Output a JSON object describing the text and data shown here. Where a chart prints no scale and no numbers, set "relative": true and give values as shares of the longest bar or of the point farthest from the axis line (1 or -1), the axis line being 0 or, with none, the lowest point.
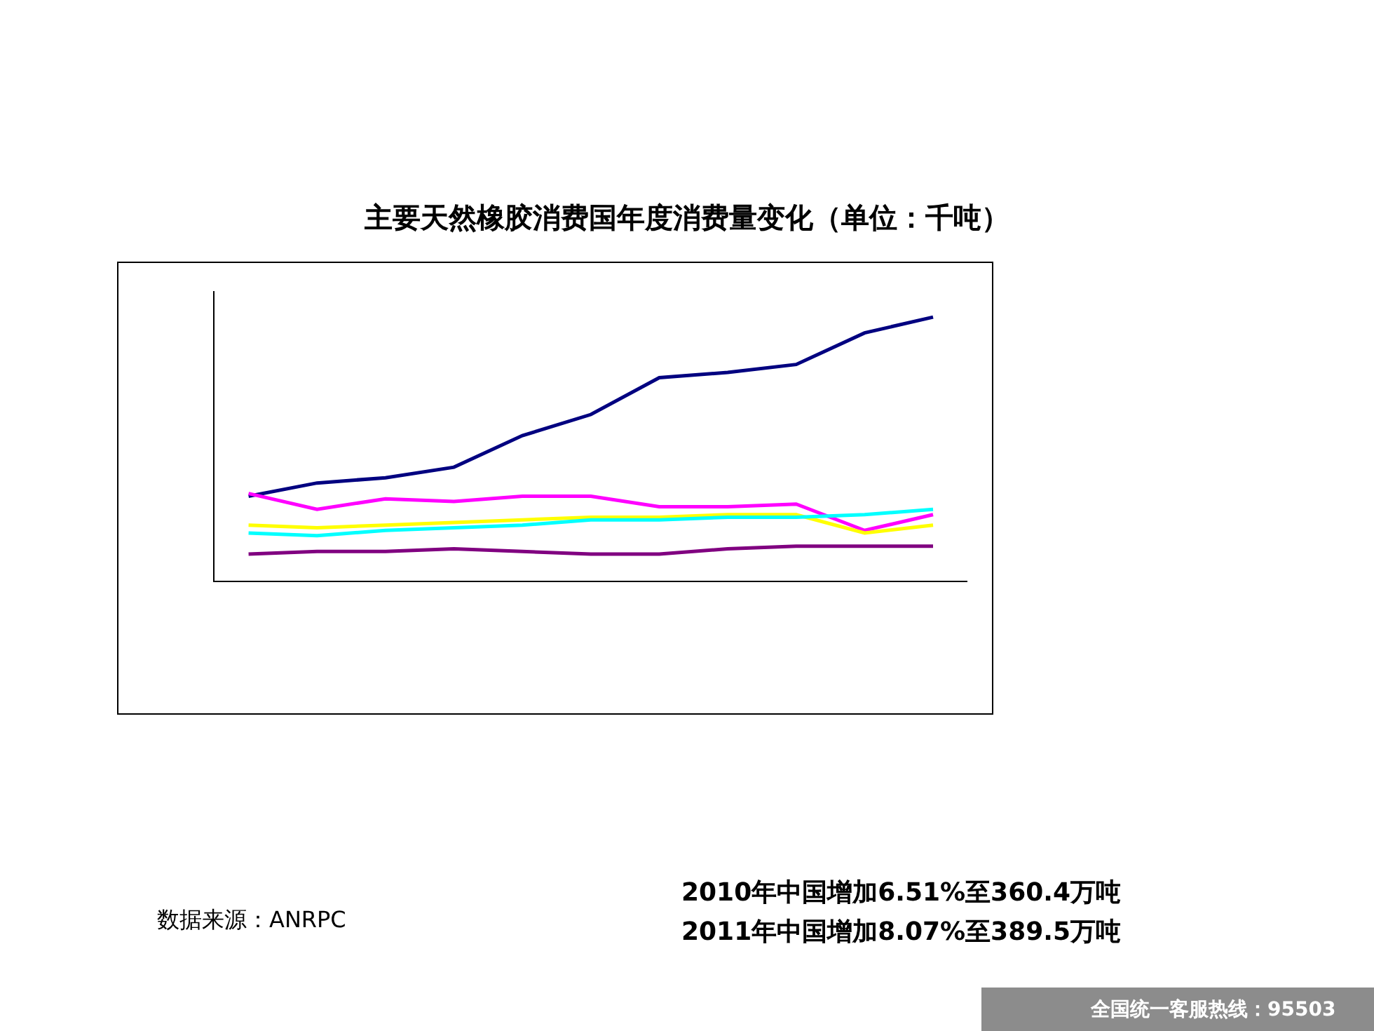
{
  "chart_data": {
    "type": "line",
    "title": "主要天然橡胶消费国年度消费量变化（单位：千吨）",
    "relative": true,
    "categories": [
      null,
      null,
      null,
      null,
      null,
      null,
      null,
      null,
      null,
      null,
      null
    ],
    "series": [
      {
        "color": "#000080",
        "values": [
          0.32,
          0.37,
          0.39,
          0.43,
          0.55,
          0.63,
          0.77,
          0.79,
          0.82,
          0.94,
          1
        ]
      },
      {
        "color": "#ff00ff",
        "values": [
          0.33,
          0.27,
          0.31,
          0.3,
          0.32,
          0.32,
          0.28,
          0.28,
          0.29,
          0.19,
          0.25
        ]
      },
      {
        "color": "#ffff00",
        "values": [
          0.21,
          0.2,
          0.21,
          0.22,
          0.23,
          0.24,
          0.24,
          0.25,
          0.25,
          0.18,
          0.21
        ]
      },
      {
        "color": "#00ffff",
        "values": [
          0.18,
          0.17,
          0.19,
          0.2,
          0.21,
          0.23,
          0.23,
          0.24,
          0.24,
          0.25,
          0.27
        ]
      },
      {
        "color": "#800080",
        "values": [
          0.1,
          0.11,
          0.11,
          0.12,
          0.11,
          0.1,
          0.1,
          0.12,
          0.13,
          0.13,
          0.13
        ]
      }
    ],
    "annotations": [
      "数据来源：ANRPC",
      "2010年中国增加6.51%至360.4万吨",
      "2011年中国增加8.07%至389.5万吨",
      "全国统一客服热线：95503"
    ],
    "grid": false,
    "marker": "none",
    "line_style": "solid"
  }
}
